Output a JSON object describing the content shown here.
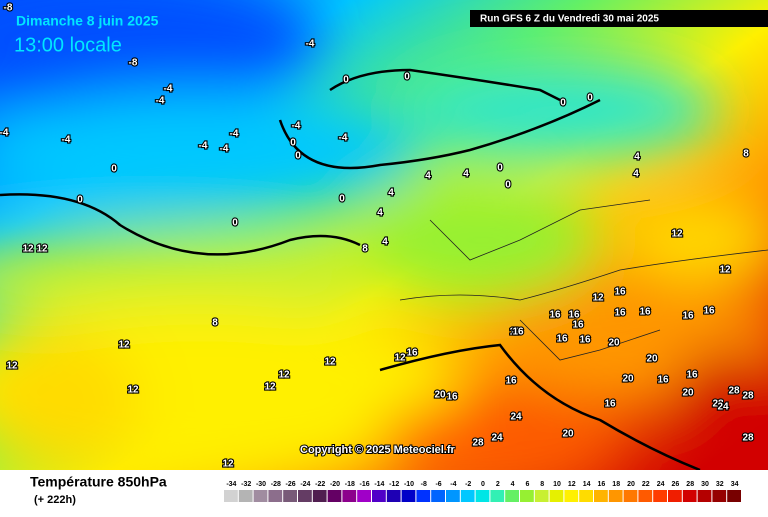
{
  "header": {
    "date": "Dimanche 8 juin 2025",
    "time": "13:00 locale",
    "run": "Run GFS 6 Z du Vendredi 30 mai 2025"
  },
  "map": {
    "contour_labels": [
      "-8",
      "-8",
      "-4",
      "-4",
      "-4",
      "-4",
      "-4",
      "-4",
      "-4",
      "-4",
      "-4",
      "-4",
      "0",
      "0",
      "0",
      "0",
      "0",
      "0",
      "0",
      "0",
      "0",
      "0",
      "0",
      "0",
      "4",
      "4",
      "4",
      "4",
      "4",
      "4",
      "4",
      "8",
      "8",
      "8",
      "12",
      "12",
      "12",
      "12",
      "12",
      "12",
      "12",
      "12",
      "12",
      "12",
      "12",
      "12",
      "12",
      "12",
      "16",
      "16",
      "16",
      "16",
      "16",
      "16",
      "16",
      "16",
      "16",
      "16",
      "16",
      "16",
      "16",
      "16",
      "16",
      "16",
      "20",
      "20",
      "20",
      "20",
      "20",
      "20",
      "16",
      "24",
      "24",
      "28",
      "28",
      "28",
      "28",
      "24",
      "28"
    ],
    "copyright": "Copyright © 2025 Meteociel.fr"
  },
  "legend": {
    "title": "Température 850hPa",
    "subtitle": "(+ 222h)",
    "scale": [
      -34,
      -32,
      -30,
      -28,
      -26,
      -24,
      -22,
      -20,
      -18,
      -16,
      -14,
      -12,
      -10,
      -8,
      -6,
      -4,
      -2,
      0,
      2,
      4,
      6,
      8,
      10,
      12,
      14,
      16,
      18,
      20,
      22,
      24,
      26,
      28,
      30,
      32,
      34
    ],
    "colors": [
      "#d2d2d2",
      "#b4b4b4",
      "#a08ca0",
      "#8c6e8c",
      "#785a78",
      "#643c64",
      "#501e50",
      "#640064",
      "#8c008c",
      "#a000c8",
      "#5000c8",
      "#1e00b4",
      "#0000c8",
      "#0032ff",
      "#0064ff",
      "#0096ff",
      "#00c8ff",
      "#00e6e6",
      "#32f0b4",
      "#64f064",
      "#96f032",
      "#c8f032",
      "#e6f000",
      "#fff000",
      "#ffdc00",
      "#ffb400",
      "#ff9600",
      "#ff7800",
      "#ff5a00",
      "#ff3c00",
      "#f01e00",
      "#d20000",
      "#b40000",
      "#960000",
      "#780000"
    ]
  }
}
